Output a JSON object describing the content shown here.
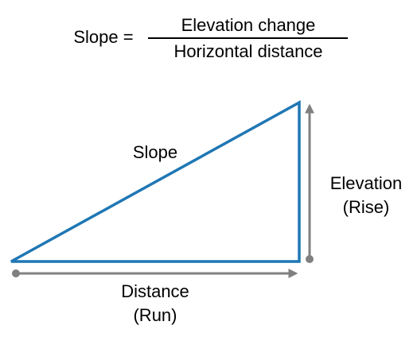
{
  "formula": {
    "lhs": "Slope =",
    "numerator": "Elevation change",
    "denominator": "Horizontal distance"
  },
  "labels": {
    "slope": "Slope",
    "rise": [
      "Elevation",
      "(Rise)"
    ],
    "run": [
      "Distance",
      "(Run)"
    ]
  }
}
